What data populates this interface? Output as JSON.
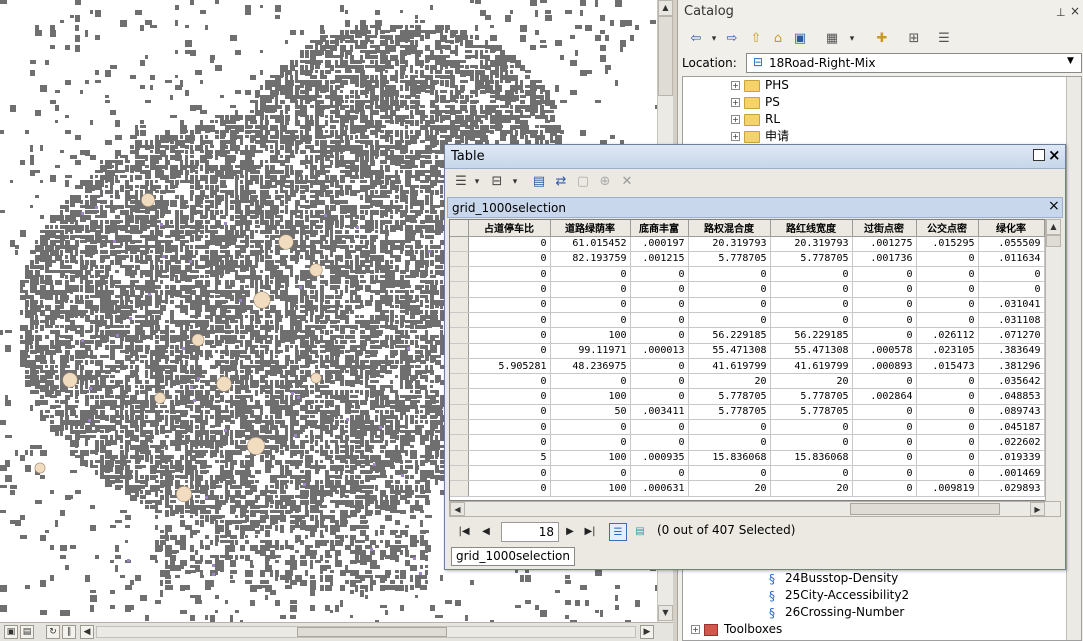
{
  "catalog": {
    "title": "Catalog",
    "location_label": "Location:",
    "location_value": "18Road-Right-Mix",
    "tree_top": [
      {
        "label": "PHS",
        "icon": "folder-icon"
      },
      {
        "label": "PS",
        "icon": "folder-icon"
      },
      {
        "label": "RL",
        "icon": "folder-icon"
      },
      {
        "label": "申请",
        "icon": "folder-icon"
      }
    ],
    "tree_bottom": [
      {
        "label": "24Busstop-Density",
        "icon": "tool-icon"
      },
      {
        "label": "25City-Accessibility2",
        "icon": "tool-icon"
      },
      {
        "label": "26Crossing-Number",
        "icon": "tool-icon"
      },
      {
        "label": "Toolboxes",
        "icon": "toolbox-icon"
      }
    ]
  },
  "table": {
    "window_title": "Table",
    "tab_name": "grid_1000selection",
    "columns": [
      "占道停车比",
      "道路绿荫率",
      "底商丰富",
      "路权混合度",
      "路红线宽度",
      "过街点密",
      "公交点密",
      "绿化率"
    ],
    "rows": [
      [
        "0",
        "61.015452",
        ".000197",
        "20.319793",
        "20.319793",
        ".001275",
        ".015295",
        ".055509"
      ],
      [
        "0",
        "82.193759",
        ".001215",
        "5.778705",
        "5.778705",
        ".001736",
        "0",
        ".011634"
      ],
      [
        "0",
        "0",
        "0",
        "0",
        "0",
        "0",
        "0",
        "0"
      ],
      [
        "0",
        "0",
        "0",
        "0",
        "0",
        "0",
        "0",
        "0"
      ],
      [
        "0",
        "0",
        "0",
        "0",
        "0",
        "0",
        "0",
        ".031041"
      ],
      [
        "0",
        "0",
        "0",
        "0",
        "0",
        "0",
        "0",
        ".031108"
      ],
      [
        "0",
        "100",
        "0",
        "56.229185",
        "56.229185",
        "0",
        ".026112",
        ".071270"
      ],
      [
        "0",
        "99.11971",
        ".000013",
        "55.471308",
        "55.471308",
        ".000578",
        ".023105",
        ".383649"
      ],
      [
        "5.905281",
        "48.236975",
        "0",
        "41.619799",
        "41.619799",
        ".000893",
        ".015473",
        ".381296"
      ],
      [
        "0",
        "0",
        "0",
        "20",
        "20",
        "0",
        "0",
        ".035642"
      ],
      [
        "0",
        "100",
        "0",
        "5.778705",
        "5.778705",
        ".002864",
        "0",
        ".048853"
      ],
      [
        "0",
        "50",
        ".003411",
        "5.778705",
        "5.778705",
        "0",
        "0",
        ".089743"
      ],
      [
        "0",
        "0",
        "0",
        "0",
        "0",
        "0",
        "0",
        ".045187"
      ],
      [
        "0",
        "0",
        "0",
        "0",
        "0",
        "0",
        "0",
        ".022602"
      ],
      [
        "5",
        "100",
        ".000935",
        "15.836068",
        "15.836068",
        "0",
        "0",
        ".019339"
      ],
      [
        "0",
        "0",
        "0",
        "0",
        "0",
        "0",
        "0",
        ".001469"
      ],
      [
        "0",
        "100",
        ".000631",
        "20",
        "20",
        "0",
        ".009819",
        ".029893"
      ]
    ],
    "record_number": "18",
    "selection_status": "(0 out of 407 Selected)",
    "bottom_tab": "grid_1000selection"
  },
  "colors": {
    "map_feature": "#6f6f6f",
    "map_highlight": "#f2dcc0",
    "map_purple": "#9c84c9",
    "title_bar": "#c7d6ea"
  }
}
